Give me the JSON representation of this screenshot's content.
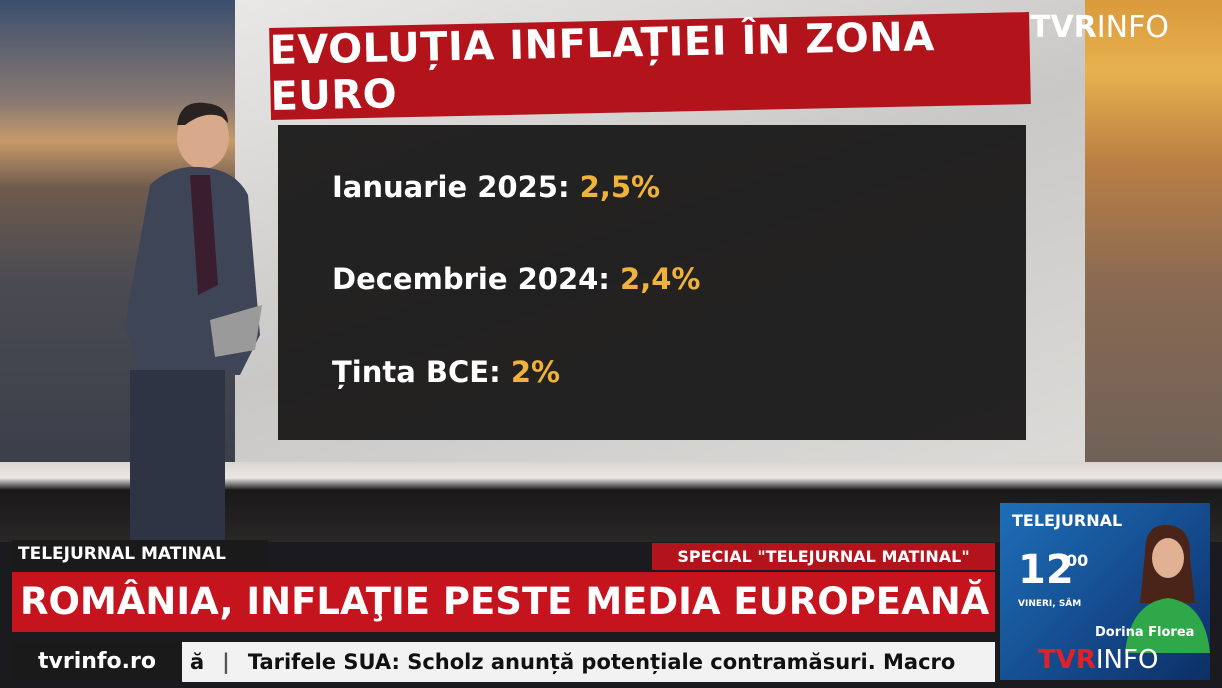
{
  "logo": {
    "brand": "TVR",
    "suffix": "INFO"
  },
  "screen": {
    "title": "EVOLUȚIA INFLAȚIEI ÎN ZONA EURO",
    "lines": [
      {
        "label": "Ianuarie 2025:",
        "value": "2,5%"
      },
      {
        "label": "Decembrie 2024:",
        "value": "2,4%"
      },
      {
        "label": "Ținta BCE:",
        "value": "2%"
      }
    ]
  },
  "lower_third": {
    "show": "TELEJURNAL MATINAL",
    "special": "SPECIAL \"TELEJURNAL MATINAL\"",
    "headline": "ROMÂNIA, INFLAŢIE PESTE MEDIA EUROPEANĂ",
    "website": "tvrinfo.ro",
    "ticker": [
      "ă",
      "Tarifele SUA: Scholz anunță potențiale contramăsuri. Macro"
    ]
  },
  "promo": {
    "show": "TELEJURNAL",
    "hour": "12",
    "minutes": "00",
    "days": "VINERI, SÂM",
    "presenter": "Dorina Florea",
    "brand": "TVR",
    "suffix": "INFO"
  }
}
